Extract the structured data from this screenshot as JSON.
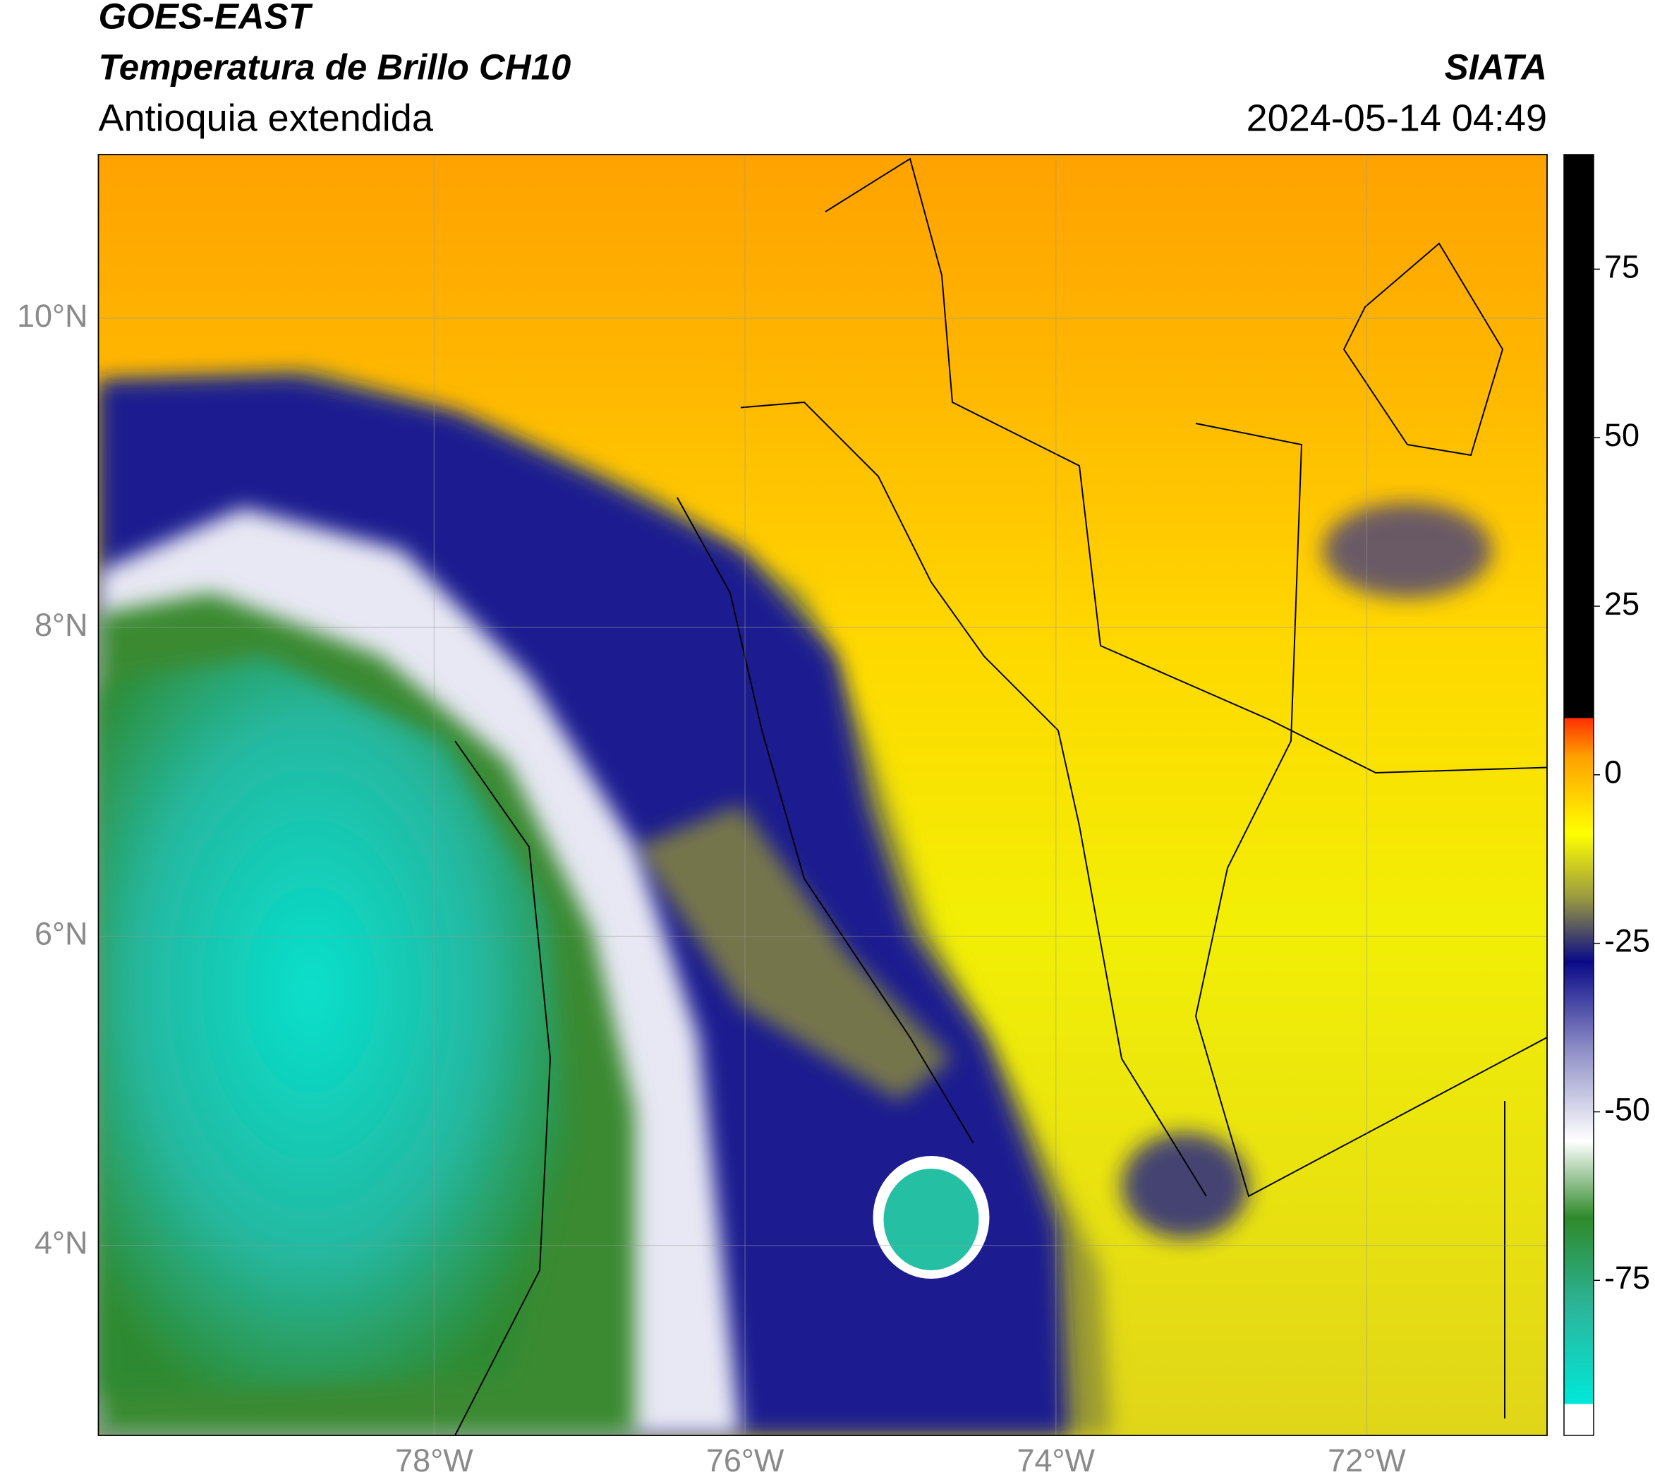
{
  "header": {
    "title": "GOES-EAST",
    "subtitle": "Temperatura de Brillo CH10",
    "region": "Antioquia extendida",
    "source": "SIATA",
    "datetime": "2024-05-14 04:49"
  },
  "map": {
    "xlim": [
      -80.16,
      -70.84
    ],
    "ylim": [
      2.77,
      11.06
    ],
    "xticks": [
      {
        "value": -78,
        "label": "78°W"
      },
      {
        "value": -76,
        "label": "76°W"
      },
      {
        "value": -74,
        "label": "74°W"
      },
      {
        "value": -72,
        "label": "72°W"
      }
    ],
    "yticks": [
      {
        "value": 4,
        "label": "4°N"
      },
      {
        "value": 6,
        "label": "6°N"
      },
      {
        "value": 8,
        "label": "8°N"
      },
      {
        "value": 10,
        "label": "10°N"
      }
    ],
    "grid": true
  },
  "colorbar": {
    "lim": [
      -98,
      92
    ],
    "ticks": [
      75,
      50,
      25,
      0,
      -25,
      -50,
      -75
    ]
  }
}
